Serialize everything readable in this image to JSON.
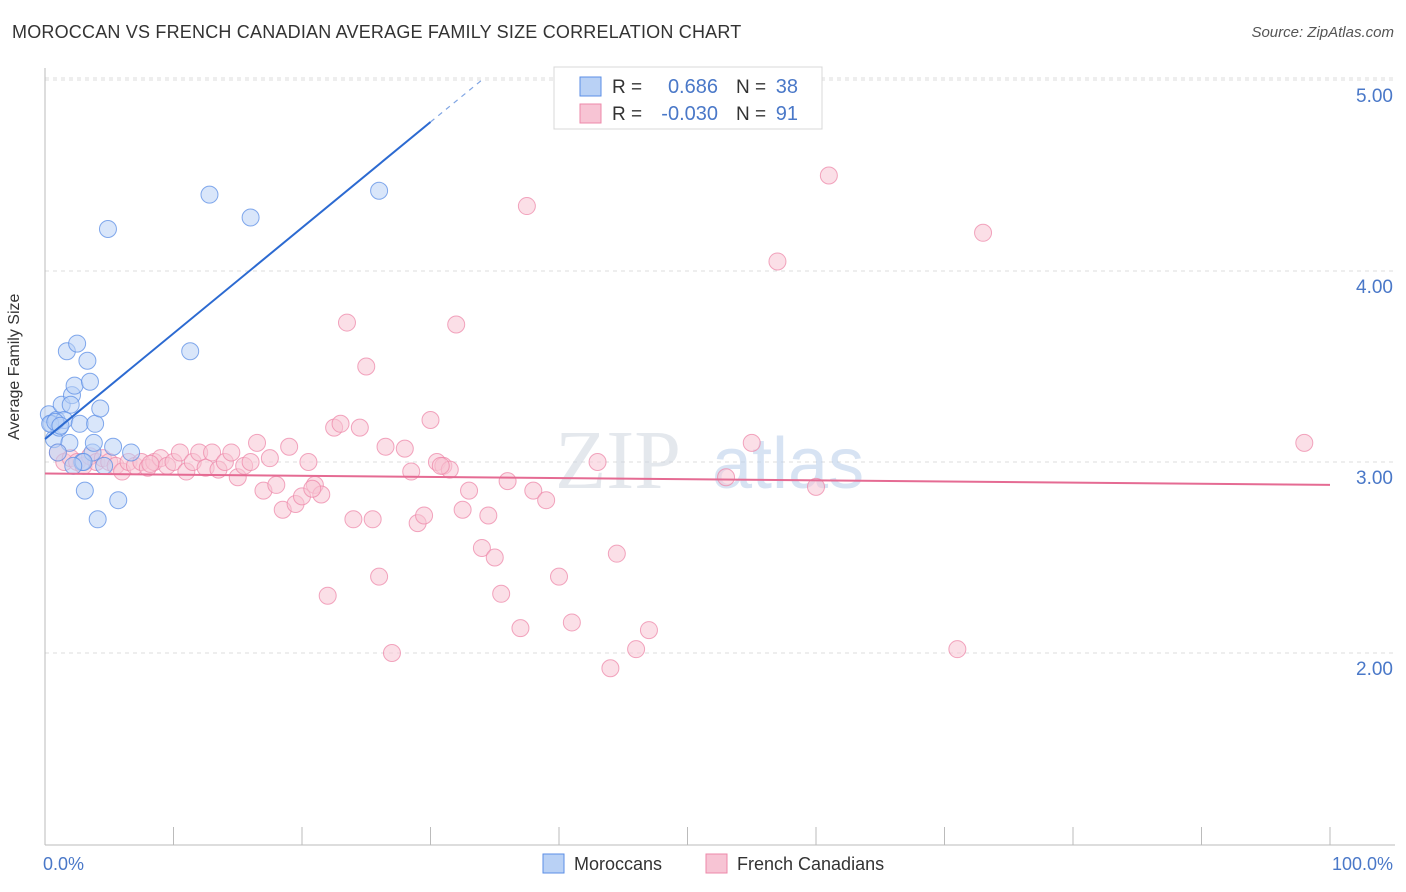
{
  "title": "MOROCCAN VS FRENCH CANADIAN AVERAGE FAMILY SIZE CORRELATION CHART",
  "source": "Source: ZipAtlas.com",
  "watermark": {
    "zip": "ZIP",
    "atlas": "atlas"
  },
  "colors": {
    "blue": "#5b8ee6",
    "blue_line": "#2c6ad1",
    "pink": "#ee88aa",
    "pink_line": "#e56b93",
    "blue_fill": "#b9d1f5",
    "pink_fill": "#f7c4d4",
    "tick_text": "#4a78c8",
    "grid": "#dddddd"
  },
  "legend": {
    "rows": [
      {
        "r_label": "R =",
        "r_value": "0.686",
        "n_label": "N =",
        "n_value": "38"
      },
      {
        "r_label": "R =",
        "r_value": "-0.030",
        "n_label": "N =",
        "n_value": "91"
      }
    ]
  },
  "chart_data": {
    "type": "scatter",
    "title": "MOROCCAN VS FRENCH CANADIAN AVERAGE FAMILY SIZE CORRELATION CHART",
    "xlabel": "",
    "ylabel": "Average Family Size",
    "xlim": [
      0,
      100
    ],
    "ylim": [
      1.0,
      5.1
    ],
    "x_tick_labels": [
      "0.0%",
      "100.0%"
    ],
    "y_ticks": [
      2.0,
      3.0,
      4.0,
      5.0
    ],
    "y_tick_labels": [
      "2.00",
      "3.00",
      "4.00",
      "5.00"
    ],
    "grid": true,
    "legend_position": "bottom-center",
    "series": [
      {
        "name": "Moroccans",
        "r": 0.686,
        "n": 38,
        "trend": {
          "x0": 0.0,
          "y0": 3.12,
          "x1": 30.0,
          "y1": 4.78,
          "dash_to_x": 34.0,
          "dash_to_y": 5.0
        },
        "points": [
          [
            0.3,
            3.25
          ],
          [
            0.5,
            3.2
          ],
          [
            0.7,
            3.12
          ],
          [
            0.9,
            3.22
          ],
          [
            1.1,
            3.18
          ],
          [
            1.3,
            3.3
          ],
          [
            1.5,
            3.22
          ],
          [
            1.7,
            3.58
          ],
          [
            1.9,
            3.1
          ],
          [
            2.1,
            3.35
          ],
          [
            2.3,
            3.4
          ],
          [
            2.5,
            3.62
          ],
          [
            2.7,
            3.2
          ],
          [
            2.9,
            3.0
          ],
          [
            3.1,
            2.85
          ],
          [
            3.3,
            3.53
          ],
          [
            3.5,
            3.42
          ],
          [
            3.7,
            3.05
          ],
          [
            3.9,
            3.2
          ],
          [
            4.1,
            2.7
          ],
          [
            4.3,
            3.28
          ],
          [
            4.6,
            2.98
          ],
          [
            4.9,
            4.22
          ],
          [
            5.3,
            3.08
          ],
          [
            5.7,
            2.8
          ],
          [
            6.7,
            3.05
          ],
          [
            11.3,
            3.58
          ],
          [
            12.8,
            4.4
          ],
          [
            16.0,
            4.28
          ],
          [
            26.0,
            4.42
          ],
          [
            0.4,
            3.2
          ],
          [
            1.0,
            3.05
          ],
          [
            2.0,
            3.3
          ],
          [
            3.0,
            3.0
          ],
          [
            0.8,
            3.21
          ],
          [
            1.2,
            3.19
          ],
          [
            2.2,
            2.98
          ],
          [
            3.8,
            3.1
          ]
        ]
      },
      {
        "name": "French Canadians",
        "r": -0.03,
        "n": 91,
        "trend": {
          "x0": 0.0,
          "y0": 2.94,
          "x1": 100.0,
          "y1": 2.88
        },
        "points": [
          [
            1.0,
            3.05
          ],
          [
            1.5,
            3.0
          ],
          [
            2.0,
            3.02
          ],
          [
            2.5,
            3.0
          ],
          [
            3.0,
            2.98
          ],
          [
            3.5,
            3.03
          ],
          [
            4.0,
            3.0
          ],
          [
            4.5,
            3.02
          ],
          [
            5.0,
            3.0
          ],
          [
            5.5,
            2.98
          ],
          [
            6.0,
            2.95
          ],
          [
            6.5,
            3.0
          ],
          [
            7.0,
            2.98
          ],
          [
            7.5,
            3.0
          ],
          [
            8.0,
            2.97
          ],
          [
            8.5,
            3.0
          ],
          [
            9.0,
            3.02
          ],
          [
            9.5,
            2.98
          ],
          [
            10.0,
            3.0
          ],
          [
            10.5,
            3.05
          ],
          [
            11.0,
            2.95
          ],
          [
            11.5,
            3.0
          ],
          [
            12.0,
            3.05
          ],
          [
            12.5,
            2.97
          ],
          [
            13.0,
            3.05
          ],
          [
            13.5,
            2.96
          ],
          [
            14.0,
            3.0
          ],
          [
            14.5,
            3.05
          ],
          [
            15.0,
            2.92
          ],
          [
            15.5,
            2.98
          ],
          [
            16.0,
            3.0
          ],
          [
            16.5,
            3.1
          ],
          [
            17.0,
            2.85
          ],
          [
            17.5,
            3.02
          ],
          [
            18.0,
            2.88
          ],
          [
            18.5,
            2.75
          ],
          [
            19.0,
            3.08
          ],
          [
            19.5,
            2.78
          ],
          [
            20.0,
            2.82
          ],
          [
            20.5,
            3.0
          ],
          [
            21.0,
            2.88
          ],
          [
            21.5,
            2.83
          ],
          [
            22.0,
            2.3
          ],
          [
            22.5,
            3.18
          ],
          [
            23.0,
            3.2
          ],
          [
            23.5,
            3.73
          ],
          [
            24.0,
            2.7
          ],
          [
            24.5,
            3.18
          ],
          [
            25.0,
            3.5
          ],
          [
            25.5,
            2.7
          ],
          [
            26.0,
            2.4
          ],
          [
            26.5,
            3.08
          ],
          [
            27.0,
            2.0
          ],
          [
            28.0,
            3.07
          ],
          [
            28.5,
            2.95
          ],
          [
            29.0,
            2.68
          ],
          [
            29.5,
            2.72
          ],
          [
            30.0,
            3.22
          ],
          [
            30.5,
            3.0
          ],
          [
            31.0,
            2.98
          ],
          [
            31.5,
            2.96
          ],
          [
            32.0,
            3.72
          ],
          [
            32.5,
            2.75
          ],
          [
            33.0,
            2.85
          ],
          [
            34.0,
            2.55
          ],
          [
            34.5,
            2.72
          ],
          [
            35.0,
            2.5
          ],
          [
            35.5,
            2.31
          ],
          [
            36.0,
            2.9
          ],
          [
            37.0,
            2.13
          ],
          [
            37.5,
            4.34
          ],
          [
            38.0,
            2.85
          ],
          [
            39.0,
            2.8
          ],
          [
            40.0,
            2.4
          ],
          [
            41.0,
            2.16
          ],
          [
            43.0,
            3.0
          ],
          [
            44.0,
            1.92
          ],
          [
            44.5,
            2.52
          ],
          [
            46.0,
            2.02
          ],
          [
            47.0,
            2.12
          ],
          [
            53.0,
            2.92
          ],
          [
            55.0,
            3.1
          ],
          [
            57.0,
            4.05
          ],
          [
            60.0,
            2.87
          ],
          [
            61.0,
            4.5
          ],
          [
            71.0,
            2.02
          ],
          [
            73.0,
            4.2
          ],
          [
            98.0,
            3.1
          ],
          [
            30.8,
            2.98
          ],
          [
            8.2,
            2.99
          ],
          [
            20.8,
            2.86
          ]
        ]
      }
    ]
  }
}
